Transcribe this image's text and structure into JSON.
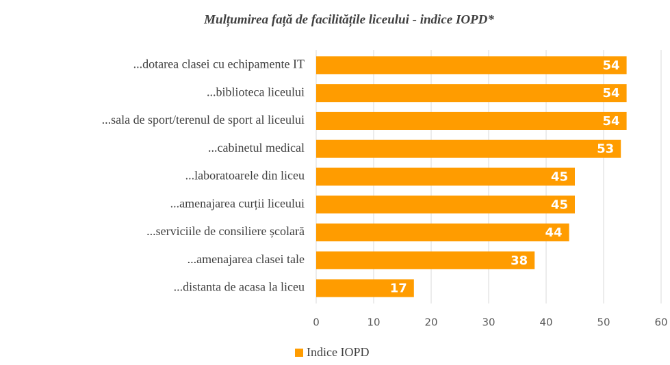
{
  "chart_data": {
    "type": "bar",
    "orientation": "horizontal",
    "title": "Mulțumirea față de facilitățile liceului - indice IOPD*",
    "categories": [
      "...dotarea clasei cu echipamente IT",
      "...biblioteca liceului",
      "...sala de sport/terenul de sport al liceului",
      "...cabinetul medical",
      "...laboratoarele din liceu",
      "...amenajarea curții liceului",
      "...serviciile de consiliere școlară",
      "...amenajarea clasei tale",
      "...distanta de acasa la liceu"
    ],
    "series": [
      {
        "name": "Indice IOPD",
        "color": "#ff9c00",
        "values": [
          54,
          54,
          54,
          53,
          45,
          45,
          44,
          38,
          17
        ]
      }
    ],
    "xlim": [
      0,
      60
    ],
    "xticks": [
      0,
      10,
      20,
      30,
      40,
      50,
      60
    ],
    "grid": true,
    "legend": "bottom"
  }
}
